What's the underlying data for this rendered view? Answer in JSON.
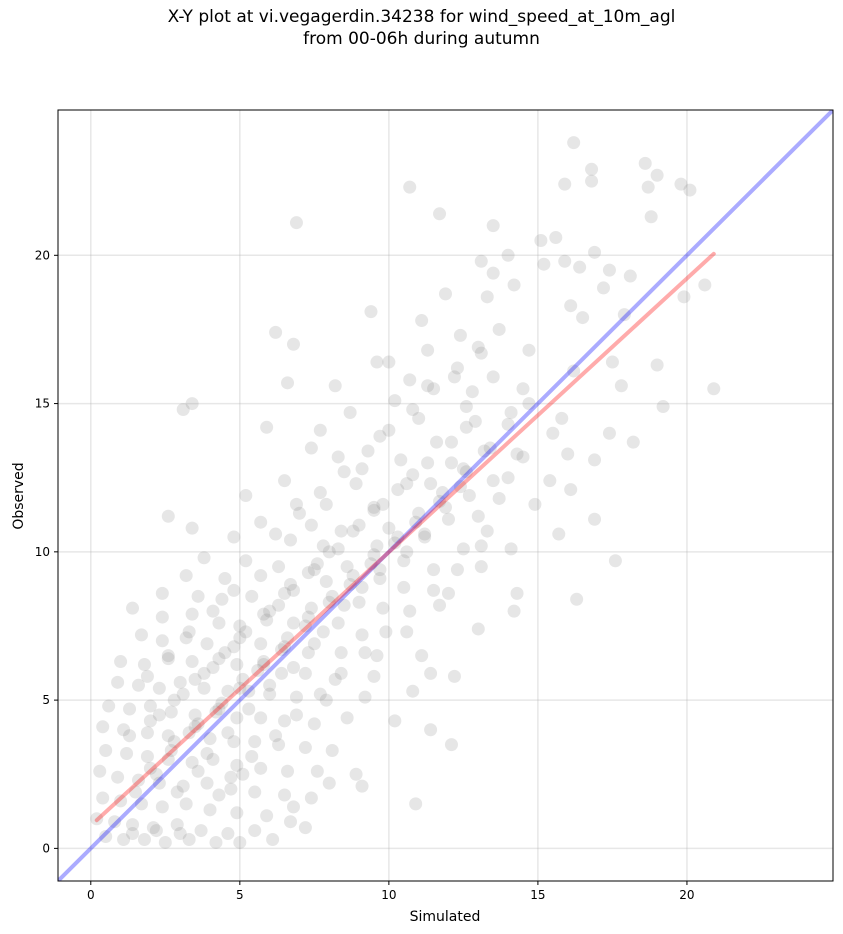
{
  "chart_data": {
    "type": "scatter",
    "title_lines": [
      "X-Y plot at vi.vegagerdin.34238 for wind_speed_at_10m_agl",
      "from 00-06h during autumn"
    ],
    "xlabel": "Simulated",
    "ylabel": "Observed",
    "xlim": [
      -1.1,
      24.9
    ],
    "ylim": [
      -1.1,
      24.9
    ],
    "xticks": [
      0,
      5,
      10,
      15,
      20
    ],
    "yticks": [
      0,
      5,
      10,
      15,
      20
    ],
    "grid": true,
    "point_color": "#808080",
    "identity_line": {
      "color": "#0000ff",
      "points": [
        [
          -1.1,
          -1.1
        ],
        [
          24.9,
          24.9
        ]
      ]
    },
    "fit_line": {
      "color": "#ff0000",
      "points": [
        [
          0.2,
          0.95
        ],
        [
          20.9,
          20.05
        ]
      ]
    },
    "points": [
      [
        16.2,
        23.8
      ],
      [
        18.6,
        23.1
      ],
      [
        16.8,
        22.9
      ],
      [
        19.0,
        22.7
      ],
      [
        19.8,
        22.4
      ],
      [
        15.9,
        22.4
      ],
      [
        16.8,
        22.5
      ],
      [
        10.7,
        22.3
      ],
      [
        20.1,
        22.2
      ],
      [
        18.7,
        22.3
      ],
      [
        6.9,
        21.1
      ],
      [
        11.7,
        21.4
      ],
      [
        13.5,
        21.0
      ],
      [
        18.8,
        21.3
      ],
      [
        15.1,
        20.5
      ],
      [
        15.6,
        20.6
      ],
      [
        16.9,
        20.1
      ],
      [
        13.1,
        19.8
      ],
      [
        14.0,
        20.0
      ],
      [
        15.2,
        19.7
      ],
      [
        17.4,
        19.5
      ],
      [
        15.9,
        19.8
      ],
      [
        16.4,
        19.6
      ],
      [
        13.5,
        19.4
      ],
      [
        18.1,
        19.3
      ],
      [
        17.2,
        18.9
      ],
      [
        14.2,
        19.0
      ],
      [
        11.9,
        18.7
      ],
      [
        13.3,
        18.6
      ],
      [
        16.1,
        18.3
      ],
      [
        20.6,
        19.0
      ],
      [
        19.9,
        18.6
      ],
      [
        17.9,
        18.0
      ],
      [
        16.5,
        17.9
      ],
      [
        11.1,
        17.8
      ],
      [
        12.4,
        17.3
      ],
      [
        13.7,
        17.5
      ],
      [
        9.4,
        18.1
      ],
      [
        6.2,
        17.4
      ],
      [
        6.8,
        17.0
      ],
      [
        11.3,
        16.8
      ],
      [
        13.1,
        16.7
      ],
      [
        14.7,
        16.8
      ],
      [
        17.5,
        16.4
      ],
      [
        19.0,
        16.3
      ],
      [
        9.6,
        16.4
      ],
      [
        10.0,
        16.4
      ],
      [
        12.2,
        15.9
      ],
      [
        13.5,
        15.9
      ],
      [
        16.2,
        16.1
      ],
      [
        6.6,
        15.7
      ],
      [
        8.2,
        15.6
      ],
      [
        10.7,
        15.8
      ],
      [
        11.3,
        15.6
      ],
      [
        12.8,
        15.4
      ],
      [
        14.5,
        15.5
      ],
      [
        17.8,
        15.6
      ],
      [
        20.9,
        15.5
      ],
      [
        3.1,
        14.8
      ],
      [
        3.4,
        15.0
      ],
      [
        10.2,
        15.1
      ],
      [
        12.6,
        14.9
      ],
      [
        14.1,
        14.7
      ],
      [
        15.8,
        14.5
      ],
      [
        19.2,
        14.9
      ],
      [
        5.9,
        14.2
      ],
      [
        7.7,
        14.1
      ],
      [
        8.7,
        14.7
      ],
      [
        11.0,
        14.5
      ],
      [
        12.6,
        14.2
      ],
      [
        15.5,
        14.0
      ],
      [
        17.4,
        14.0
      ],
      [
        9.7,
        13.9
      ],
      [
        11.6,
        13.7
      ],
      [
        13.4,
        13.5
      ],
      [
        16.0,
        13.3
      ],
      [
        18.2,
        13.7
      ],
      [
        7.4,
        13.5
      ],
      [
        8.3,
        13.2
      ],
      [
        10.4,
        13.1
      ],
      [
        12.1,
        13.0
      ],
      [
        14.5,
        13.2
      ],
      [
        16.9,
        13.1
      ],
      [
        9.1,
        12.8
      ],
      [
        10.8,
        12.6
      ],
      [
        12.6,
        12.7
      ],
      [
        14.0,
        12.5
      ],
      [
        15.4,
        12.4
      ],
      [
        6.5,
        12.4
      ],
      [
        8.9,
        12.3
      ],
      [
        10.3,
        12.1
      ],
      [
        11.4,
        12.3
      ],
      [
        13.7,
        11.8
      ],
      [
        16.1,
        12.1
      ],
      [
        5.2,
        11.9
      ],
      [
        6.9,
        11.6
      ],
      [
        7.9,
        11.6
      ],
      [
        9.5,
        11.4
      ],
      [
        11.9,
        11.5
      ],
      [
        13.0,
        11.2
      ],
      [
        14.9,
        11.6
      ],
      [
        2.6,
        11.2
      ],
      [
        3.4,
        10.8
      ],
      [
        5.7,
        11.0
      ],
      [
        7.4,
        10.9
      ],
      [
        8.4,
        10.7
      ],
      [
        10.0,
        10.8
      ],
      [
        11.2,
        10.6
      ],
      [
        13.3,
        10.7
      ],
      [
        15.7,
        10.6
      ],
      [
        16.9,
        11.1
      ],
      [
        4.8,
        10.5
      ],
      [
        6.7,
        10.4
      ],
      [
        7.8,
        10.2
      ],
      [
        9.6,
        10.2
      ],
      [
        10.6,
        10.0
      ],
      [
        12.5,
        10.1
      ],
      [
        14.1,
        10.1
      ],
      [
        3.8,
        9.8
      ],
      [
        5.2,
        9.7
      ],
      [
        6.3,
        9.5
      ],
      [
        7.6,
        9.6
      ],
      [
        8.6,
        9.5
      ],
      [
        9.7,
        9.4
      ],
      [
        11.5,
        9.4
      ],
      [
        13.1,
        9.5
      ],
      [
        17.6,
        9.7
      ],
      [
        3.2,
        9.2
      ],
      [
        4.5,
        9.1
      ],
      [
        5.7,
        9.2
      ],
      [
        6.7,
        8.9
      ],
      [
        7.9,
        9.0
      ],
      [
        9.1,
        8.8
      ],
      [
        10.5,
        8.8
      ],
      [
        12.0,
        8.6
      ],
      [
        14.3,
        8.6
      ],
      [
        16.3,
        8.4
      ],
      [
        2.4,
        8.6
      ],
      [
        3.6,
        8.5
      ],
      [
        4.4,
        8.4
      ],
      [
        5.4,
        8.5
      ],
      [
        6.3,
        8.2
      ],
      [
        7.4,
        8.1
      ],
      [
        8.5,
        8.2
      ],
      [
        9.8,
        8.1
      ],
      [
        11.7,
        8.2
      ],
      [
        14.2,
        8.0
      ],
      [
        1.4,
        8.1
      ],
      [
        2.4,
        7.8
      ],
      [
        3.4,
        7.9
      ],
      [
        4.3,
        7.6
      ],
      [
        5.0,
        7.5
      ],
      [
        5.9,
        7.7
      ],
      [
        6.8,
        7.6
      ],
      [
        7.8,
        7.3
      ],
      [
        9.1,
        7.2
      ],
      [
        10.6,
        7.3
      ],
      [
        13.0,
        7.4
      ],
      [
        1.7,
        7.2
      ],
      [
        2.4,
        7.0
      ],
      [
        3.2,
        7.1
      ],
      [
        3.9,
        6.9
      ],
      [
        4.8,
        6.8
      ],
      [
        5.7,
        6.9
      ],
      [
        6.4,
        6.7
      ],
      [
        7.3,
        6.6
      ],
      [
        8.4,
        6.6
      ],
      [
        9.6,
        6.5
      ],
      [
        11.1,
        6.5
      ],
      [
        1.0,
        6.3
      ],
      [
        1.8,
        6.2
      ],
      [
        2.6,
        6.4
      ],
      [
        3.4,
        6.3
      ],
      [
        4.1,
        6.1
      ],
      [
        4.9,
        6.2
      ],
      [
        5.6,
        6.0
      ],
      [
        6.4,
        5.9
      ],
      [
        7.2,
        5.9
      ],
      [
        8.2,
        5.7
      ],
      [
        9.5,
        5.8
      ],
      [
        11.4,
        5.9
      ],
      [
        12.2,
        5.8
      ],
      [
        0.9,
        5.6
      ],
      [
        1.6,
        5.5
      ],
      [
        2.3,
        5.4
      ],
      [
        3.0,
        5.6
      ],
      [
        3.8,
        5.4
      ],
      [
        4.6,
        5.3
      ],
      [
        5.3,
        5.3
      ],
      [
        6.0,
        5.2
      ],
      [
        6.9,
        5.1
      ],
      [
        7.9,
        5.0
      ],
      [
        9.2,
        5.1
      ],
      [
        10.8,
        5.3
      ],
      [
        0.6,
        4.8
      ],
      [
        1.3,
        4.7
      ],
      [
        2.0,
        4.8
      ],
      [
        2.7,
        4.6
      ],
      [
        3.5,
        4.5
      ],
      [
        4.2,
        4.6
      ],
      [
        4.9,
        4.4
      ],
      [
        5.7,
        4.4
      ],
      [
        6.5,
        4.3
      ],
      [
        7.5,
        4.2
      ],
      [
        8.6,
        4.4
      ],
      [
        10.2,
        4.3
      ],
      [
        0.4,
        4.1
      ],
      [
        1.1,
        4.0
      ],
      [
        1.9,
        3.9
      ],
      [
        2.6,
        3.8
      ],
      [
        3.3,
        3.9
      ],
      [
        4.0,
        3.7
      ],
      [
        4.8,
        3.6
      ],
      [
        5.5,
        3.6
      ],
      [
        6.3,
        3.5
      ],
      [
        7.2,
        3.4
      ],
      [
        8.1,
        3.3
      ],
      [
        11.4,
        4.0
      ],
      [
        12.1,
        3.5
      ],
      [
        0.5,
        3.3
      ],
      [
        1.2,
        3.2
      ],
      [
        1.9,
        3.1
      ],
      [
        2.6,
        3.0
      ],
      [
        3.4,
        2.9
      ],
      [
        4.1,
        3.0
      ],
      [
        4.9,
        2.8
      ],
      [
        5.7,
        2.7
      ],
      [
        6.6,
        2.6
      ],
      [
        7.6,
        2.6
      ],
      [
        8.9,
        2.5
      ],
      [
        0.3,
        2.6
      ],
      [
        0.9,
        2.4
      ],
      [
        1.6,
        2.3
      ],
      [
        2.3,
        2.2
      ],
      [
        3.1,
        2.1
      ],
      [
        3.9,
        2.2
      ],
      [
        4.7,
        2.0
      ],
      [
        5.5,
        1.9
      ],
      [
        6.5,
        1.8
      ],
      [
        7.4,
        1.7
      ],
      [
        8.0,
        2.2
      ],
      [
        9.1,
        2.1
      ],
      [
        0.4,
        1.7
      ],
      [
        1.0,
        1.6
      ],
      [
        1.7,
        1.5
      ],
      [
        2.4,
        1.4
      ],
      [
        3.2,
        1.5
      ],
      [
        4.0,
        1.3
      ],
      [
        4.9,
        1.2
      ],
      [
        5.9,
        1.1
      ],
      [
        6.8,
        1.4
      ],
      [
        10.9,
        1.5
      ],
      [
        0.2,
        1.0
      ],
      [
        0.8,
        0.9
      ],
      [
        1.4,
        0.8
      ],
      [
        2.1,
        0.7
      ],
      [
        2.9,
        0.8
      ],
      [
        3.7,
        0.6
      ],
      [
        4.6,
        0.5
      ],
      [
        5.5,
        0.6
      ],
      [
        6.7,
        0.9
      ],
      [
        7.2,
        0.7
      ],
      [
        0.5,
        0.4
      ],
      [
        1.1,
        0.3
      ],
      [
        1.8,
        0.3
      ],
      [
        2.5,
        0.2
      ],
      [
        3.3,
        0.3
      ],
      [
        4.2,
        0.2
      ],
      [
        5.0,
        0.2
      ],
      [
        6.1,
        0.3
      ],
      [
        1.4,
        0.5
      ],
      [
        2.2,
        0.6
      ],
      [
        3.0,
        0.5
      ],
      [
        2.8,
        3.6
      ],
      [
        3.6,
        4.2
      ],
      [
        4.4,
        4.9
      ],
      [
        5.1,
        5.7
      ],
      [
        5.8,
        6.3
      ],
      [
        6.6,
        7.1
      ],
      [
        7.3,
        7.8
      ],
      [
        8.1,
        8.5
      ],
      [
        8.8,
        9.2
      ],
      [
        9.5,
        9.9
      ],
      [
        10.3,
        10.5
      ],
      [
        11.0,
        11.3
      ],
      [
        11.8,
        12.0
      ],
      [
        12.5,
        12.8
      ],
      [
        13.2,
        13.4
      ],
      [
        14.0,
        14.3
      ],
      [
        14.7,
        15.0
      ],
      [
        3.9,
        3.2
      ],
      [
        4.6,
        3.9
      ],
      [
        5.3,
        4.7
      ],
      [
        6.0,
        5.5
      ],
      [
        6.8,
        6.1
      ],
      [
        7.5,
        6.9
      ],
      [
        8.3,
        7.6
      ],
      [
        9.0,
        8.3
      ],
      [
        9.7,
        9.1
      ],
      [
        10.5,
        9.7
      ],
      [
        11.2,
        10.5
      ],
      [
        12.0,
        11.1
      ],
      [
        12.7,
        11.9
      ],
      [
        13.5,
        12.4
      ],
      [
        14.3,
        13.3
      ],
      [
        2.0,
        2.7
      ],
      [
        2.7,
        3.3
      ],
      [
        3.5,
        4.1
      ],
      [
        4.3,
        4.7
      ],
      [
        5.0,
        5.4
      ],
      [
        5.8,
        6.2
      ],
      [
        6.5,
        6.8
      ],
      [
        7.2,
        7.5
      ],
      [
        8.0,
        8.3
      ],
      [
        8.7,
        8.9
      ],
      [
        9.4,
        9.6
      ],
      [
        10.2,
        10.3
      ],
      [
        10.9,
        11.0
      ],
      [
        11.7,
        11.7
      ],
      [
        12.4,
        12.2
      ],
      [
        2.3,
        4.5
      ],
      [
        3.1,
        5.2
      ],
      [
        3.8,
        5.9
      ],
      [
        4.5,
        6.6
      ],
      [
        5.2,
        7.3
      ],
      [
        6.0,
        8.0
      ],
      [
        6.8,
        8.7
      ],
      [
        7.5,
        9.4
      ],
      [
        8.3,
        10.1
      ],
      [
        9.0,
        10.9
      ],
      [
        9.8,
        11.6
      ],
      [
        10.6,
        12.3
      ],
      [
        11.3,
        13.0
      ],
      [
        12.1,
        13.7
      ],
      [
        12.9,
        14.4
      ],
      [
        4.7,
        2.4
      ],
      [
        5.4,
        3.1
      ],
      [
        6.2,
        3.8
      ],
      [
        6.9,
        4.5
      ],
      [
        7.7,
        5.2
      ],
      [
        8.4,
        5.9
      ],
      [
        9.2,
        6.6
      ],
      [
        9.9,
        7.3
      ],
      [
        10.7,
        8.0
      ],
      [
        11.5,
        8.7
      ],
      [
        12.3,
        9.4
      ],
      [
        13.1,
        10.2
      ],
      [
        1.5,
        1.9
      ],
      [
        2.2,
        2.5
      ],
      [
        2.9,
        1.9
      ],
      [
        3.6,
        2.6
      ],
      [
        4.3,
        1.8
      ],
      [
        5.1,
        2.5
      ],
      [
        1.3,
        3.8
      ],
      [
        2.0,
        4.3
      ],
      [
        2.8,
        5.0
      ],
      [
        3.5,
        5.7
      ],
      [
        4.3,
        6.4
      ],
      [
        5.0,
        7.1
      ],
      [
        5.8,
        7.9
      ],
      [
        6.5,
        8.6
      ],
      [
        7.3,
        9.3
      ],
      [
        8.0,
        10.0
      ],
      [
        8.8,
        10.7
      ],
      [
        9.5,
        11.5
      ],
      [
        1.9,
        5.8
      ],
      [
        2.6,
        6.5
      ],
      [
        3.3,
        7.3
      ],
      [
        4.1,
        8.0
      ],
      [
        4.8,
        8.7
      ],
      [
        6.2,
        10.6
      ],
      [
        7.0,
        11.3
      ],
      [
        7.7,
        12.0
      ],
      [
        8.5,
        12.7
      ],
      [
        9.3,
        13.4
      ],
      [
        10.0,
        14.1
      ],
      [
        10.8,
        14.8
      ],
      [
        11.5,
        15.5
      ],
      [
        12.3,
        16.2
      ],
      [
        13.0,
        16.9
      ]
    ]
  }
}
